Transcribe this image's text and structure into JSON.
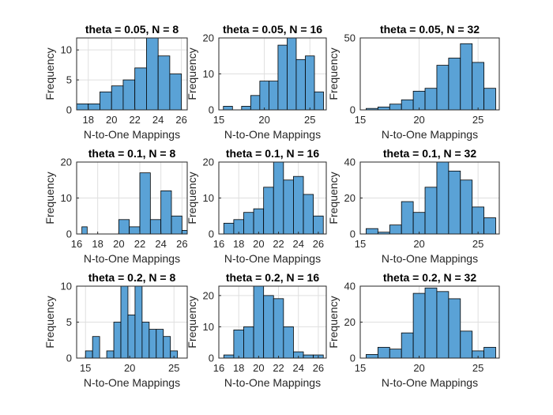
{
  "chart_data": [
    {
      "type": "bar",
      "title": "theta = 0.05, N = 8",
      "xlabel": "N-to-One Mappings",
      "ylabel": "Frequency",
      "bins": [
        [
          17,
          18
        ],
        [
          18,
          19
        ],
        [
          19,
          20
        ],
        [
          20,
          21
        ],
        [
          21,
          22
        ],
        [
          22,
          23
        ],
        [
          23,
          24
        ],
        [
          24,
          25
        ],
        [
          25,
          26
        ],
        [
          26,
          27
        ]
      ],
      "values": [
        1,
        1,
        3,
        4,
        5,
        7,
        12,
        9,
        6,
        0
      ],
      "xlim": [
        17,
        26.5
      ],
      "ylim": [
        0,
        12
      ],
      "xticks": [
        18,
        20,
        22,
        24,
        26
      ],
      "yticks": [
        0,
        5,
        10
      ],
      "grid": true
    },
    {
      "type": "bar",
      "title": "theta = 0.05, N = 16",
      "xlabel": "N-to-One Mappings",
      "ylabel": "Frequency",
      "bins": [
        [
          15.5,
          16.5
        ],
        [
          16.5,
          17.5
        ],
        [
          17.5,
          18.5
        ],
        [
          18.5,
          19.5
        ],
        [
          19.5,
          20.5
        ],
        [
          20.5,
          21.5
        ],
        [
          21.5,
          22.5
        ],
        [
          22.5,
          23.5
        ],
        [
          23.5,
          24.5
        ],
        [
          24.5,
          25.5
        ],
        [
          25.5,
          26.5
        ]
      ],
      "values": [
        1,
        0,
        1,
        4,
        8,
        8,
        18,
        20,
        14,
        15,
        5
      ],
      "xlim": [
        15,
        26.8
      ],
      "ylim": [
        0,
        20
      ],
      "xticks": [
        15,
        20,
        25
      ],
      "yticks": [
        0,
        10,
        20
      ],
      "grid": true
    },
    {
      "type": "bar",
      "title": "theta = 0.05, N = 32",
      "xlabel": "N-to-One Mappings",
      "ylabel": "Frequency",
      "bins": [
        [
          15.5,
          16.5
        ],
        [
          16.5,
          17.5
        ],
        [
          17.5,
          18.5
        ],
        [
          18.5,
          19.5
        ],
        [
          19.5,
          20.5
        ],
        [
          20.5,
          21.5
        ],
        [
          21.5,
          22.5
        ],
        [
          22.5,
          23.5
        ],
        [
          23.5,
          24.5
        ],
        [
          24.5,
          25.5
        ],
        [
          25.5,
          26.5
        ]
      ],
      "values": [
        1,
        2,
        4,
        7,
        13,
        15,
        31,
        36,
        46,
        33,
        15
      ],
      "xlim": [
        15,
        26.8
      ],
      "ylim": [
        0,
        50
      ],
      "xticks": [
        15,
        20,
        25
      ],
      "yticks": [
        0,
        50
      ],
      "grid": true
    },
    {
      "type": "bar",
      "title": "theta = 0.1, N = 8",
      "xlabel": "N-to-One Mappings",
      "ylabel": "Frequency",
      "bins": [
        [
          16.5,
          17
        ],
        [
          17,
          18
        ],
        [
          18,
          19
        ],
        [
          19,
          20
        ],
        [
          20,
          21
        ],
        [
          21,
          22
        ],
        [
          22,
          23
        ],
        [
          23,
          24
        ],
        [
          24,
          25
        ],
        [
          25,
          26
        ],
        [
          26,
          26.5
        ]
      ],
      "values": [
        2,
        0,
        0,
        0,
        4,
        2,
        17,
        4,
        12,
        5,
        1
      ],
      "xlim": [
        16,
        26.5
      ],
      "ylim": [
        0,
        20
      ],
      "xticks": [
        16,
        18,
        20,
        22,
        24,
        26
      ],
      "yticks": [
        0,
        10,
        20
      ],
      "grid": true
    },
    {
      "type": "bar",
      "title": "theta = 0.1, N = 16",
      "xlabel": "N-to-One Mappings",
      "ylabel": "Frequency",
      "bins": [
        [
          16.5,
          17.5
        ],
        [
          17.5,
          18.5
        ],
        [
          18.5,
          19.5
        ],
        [
          19.5,
          20.5
        ],
        [
          20.5,
          21.5
        ],
        [
          21.5,
          22.5
        ],
        [
          22.5,
          23.5
        ],
        [
          23.5,
          24.5
        ],
        [
          24.5,
          25.5
        ],
        [
          25.5,
          26.5
        ]
      ],
      "values": [
        3,
        4,
        6,
        7,
        13,
        20,
        15,
        16,
        11,
        5
      ],
      "xlim": [
        16,
        26.8
      ],
      "ylim": [
        0,
        20
      ],
      "xticks": [
        16,
        18,
        20,
        22,
        24,
        26
      ],
      "yticks": [
        0,
        10,
        20
      ],
      "grid": true
    },
    {
      "type": "bar",
      "title": "theta = 0.1, N = 32",
      "xlabel": "N-to-One Mappings",
      "ylabel": "Frequency",
      "bins": [
        [
          15.5,
          16.5
        ],
        [
          16.5,
          17.5
        ],
        [
          17.5,
          18.5
        ],
        [
          18.5,
          19.5
        ],
        [
          19.5,
          20.5
        ],
        [
          20.5,
          21.5
        ],
        [
          21.5,
          22.5
        ],
        [
          22.5,
          23.5
        ],
        [
          23.5,
          24.5
        ],
        [
          24.5,
          25.5
        ],
        [
          25.5,
          26.5
        ]
      ],
      "values": [
        3,
        1,
        5,
        18,
        12,
        26,
        40,
        35,
        30,
        15,
        9
      ],
      "xlim": [
        15,
        26.8
      ],
      "ylim": [
        0,
        40
      ],
      "xticks": [
        15,
        20,
        25
      ],
      "yticks": [
        0,
        20,
        40
      ],
      "grid": true
    },
    {
      "type": "bar",
      "title": "theta = 0.2, N = 8",
      "xlabel": "N-to-One Mappings",
      "ylabel": "Frequency",
      "bins": [
        [
          15,
          15.8
        ],
        [
          15.8,
          16.6
        ],
        [
          16.6,
          17.4
        ],
        [
          17.4,
          18.2
        ],
        [
          18.2,
          19
        ],
        [
          19,
          19.8
        ],
        [
          19.8,
          20.6
        ],
        [
          20.6,
          21.4
        ],
        [
          21.4,
          22.2
        ],
        [
          22.2,
          23
        ],
        [
          23,
          23.8
        ],
        [
          23.8,
          24.6
        ],
        [
          24.6,
          25.4
        ],
        [
          25.4,
          26.2
        ]
      ],
      "values": [
        1,
        3,
        0,
        1,
        5,
        10,
        6,
        10,
        5,
        4,
        4,
        3,
        1,
        0
      ],
      "xlim": [
        14,
        26.5
      ],
      "ylim": [
        0,
        10
      ],
      "xticks": [
        15,
        20,
        25
      ],
      "yticks": [
        0,
        5,
        10
      ],
      "grid": true
    },
    {
      "type": "bar",
      "title": "theta = 0.2, N = 16",
      "xlabel": "N-to-One Mappings",
      "ylabel": "Frequency",
      "bins": [
        [
          16.5,
          17.5
        ],
        [
          17.5,
          18.5
        ],
        [
          18.5,
          19.5
        ],
        [
          19.5,
          20.5
        ],
        [
          20.5,
          21.5
        ],
        [
          21.5,
          22.5
        ],
        [
          22.5,
          23.5
        ],
        [
          23.5,
          24.5
        ],
        [
          24.5,
          25.5
        ],
        [
          25.5,
          26.5
        ]
      ],
      "values": [
        1,
        9,
        10,
        23,
        20,
        19,
        10,
        2,
        1,
        1
      ],
      "xlim": [
        16,
        26.8
      ],
      "ylim": [
        0,
        23
      ],
      "xticks": [
        16,
        18,
        20,
        22,
        24,
        26
      ],
      "yticks": [
        0,
        10,
        20
      ],
      "grid": true
    },
    {
      "type": "bar",
      "title": "theta = 0.2, N = 32",
      "xlabel": "N-to-One Mappings",
      "ylabel": "Frequency",
      "bins": [
        [
          15.5,
          16.5
        ],
        [
          16.5,
          17.5
        ],
        [
          17.5,
          18.5
        ],
        [
          18.5,
          19.5
        ],
        [
          19.5,
          20.5
        ],
        [
          20.5,
          21.5
        ],
        [
          21.5,
          22.5
        ],
        [
          22.5,
          23.5
        ],
        [
          23.5,
          24.5
        ],
        [
          24.5,
          25.5
        ],
        [
          25.5,
          26.5
        ]
      ],
      "values": [
        2,
        6,
        5,
        14,
        36,
        39,
        37,
        33,
        15,
        4,
        6
      ],
      "xlim": [
        15,
        26.8
      ],
      "ylim": [
        0,
        40
      ],
      "xticks": [
        15,
        20,
        25
      ],
      "yticks": [
        0,
        20,
        40
      ],
      "grid": true
    }
  ],
  "colors": {
    "bar_fill": "#5aa2d6",
    "bar_edge": "#000000",
    "grid": "#dfdfdf",
    "axis": "#262626"
  }
}
